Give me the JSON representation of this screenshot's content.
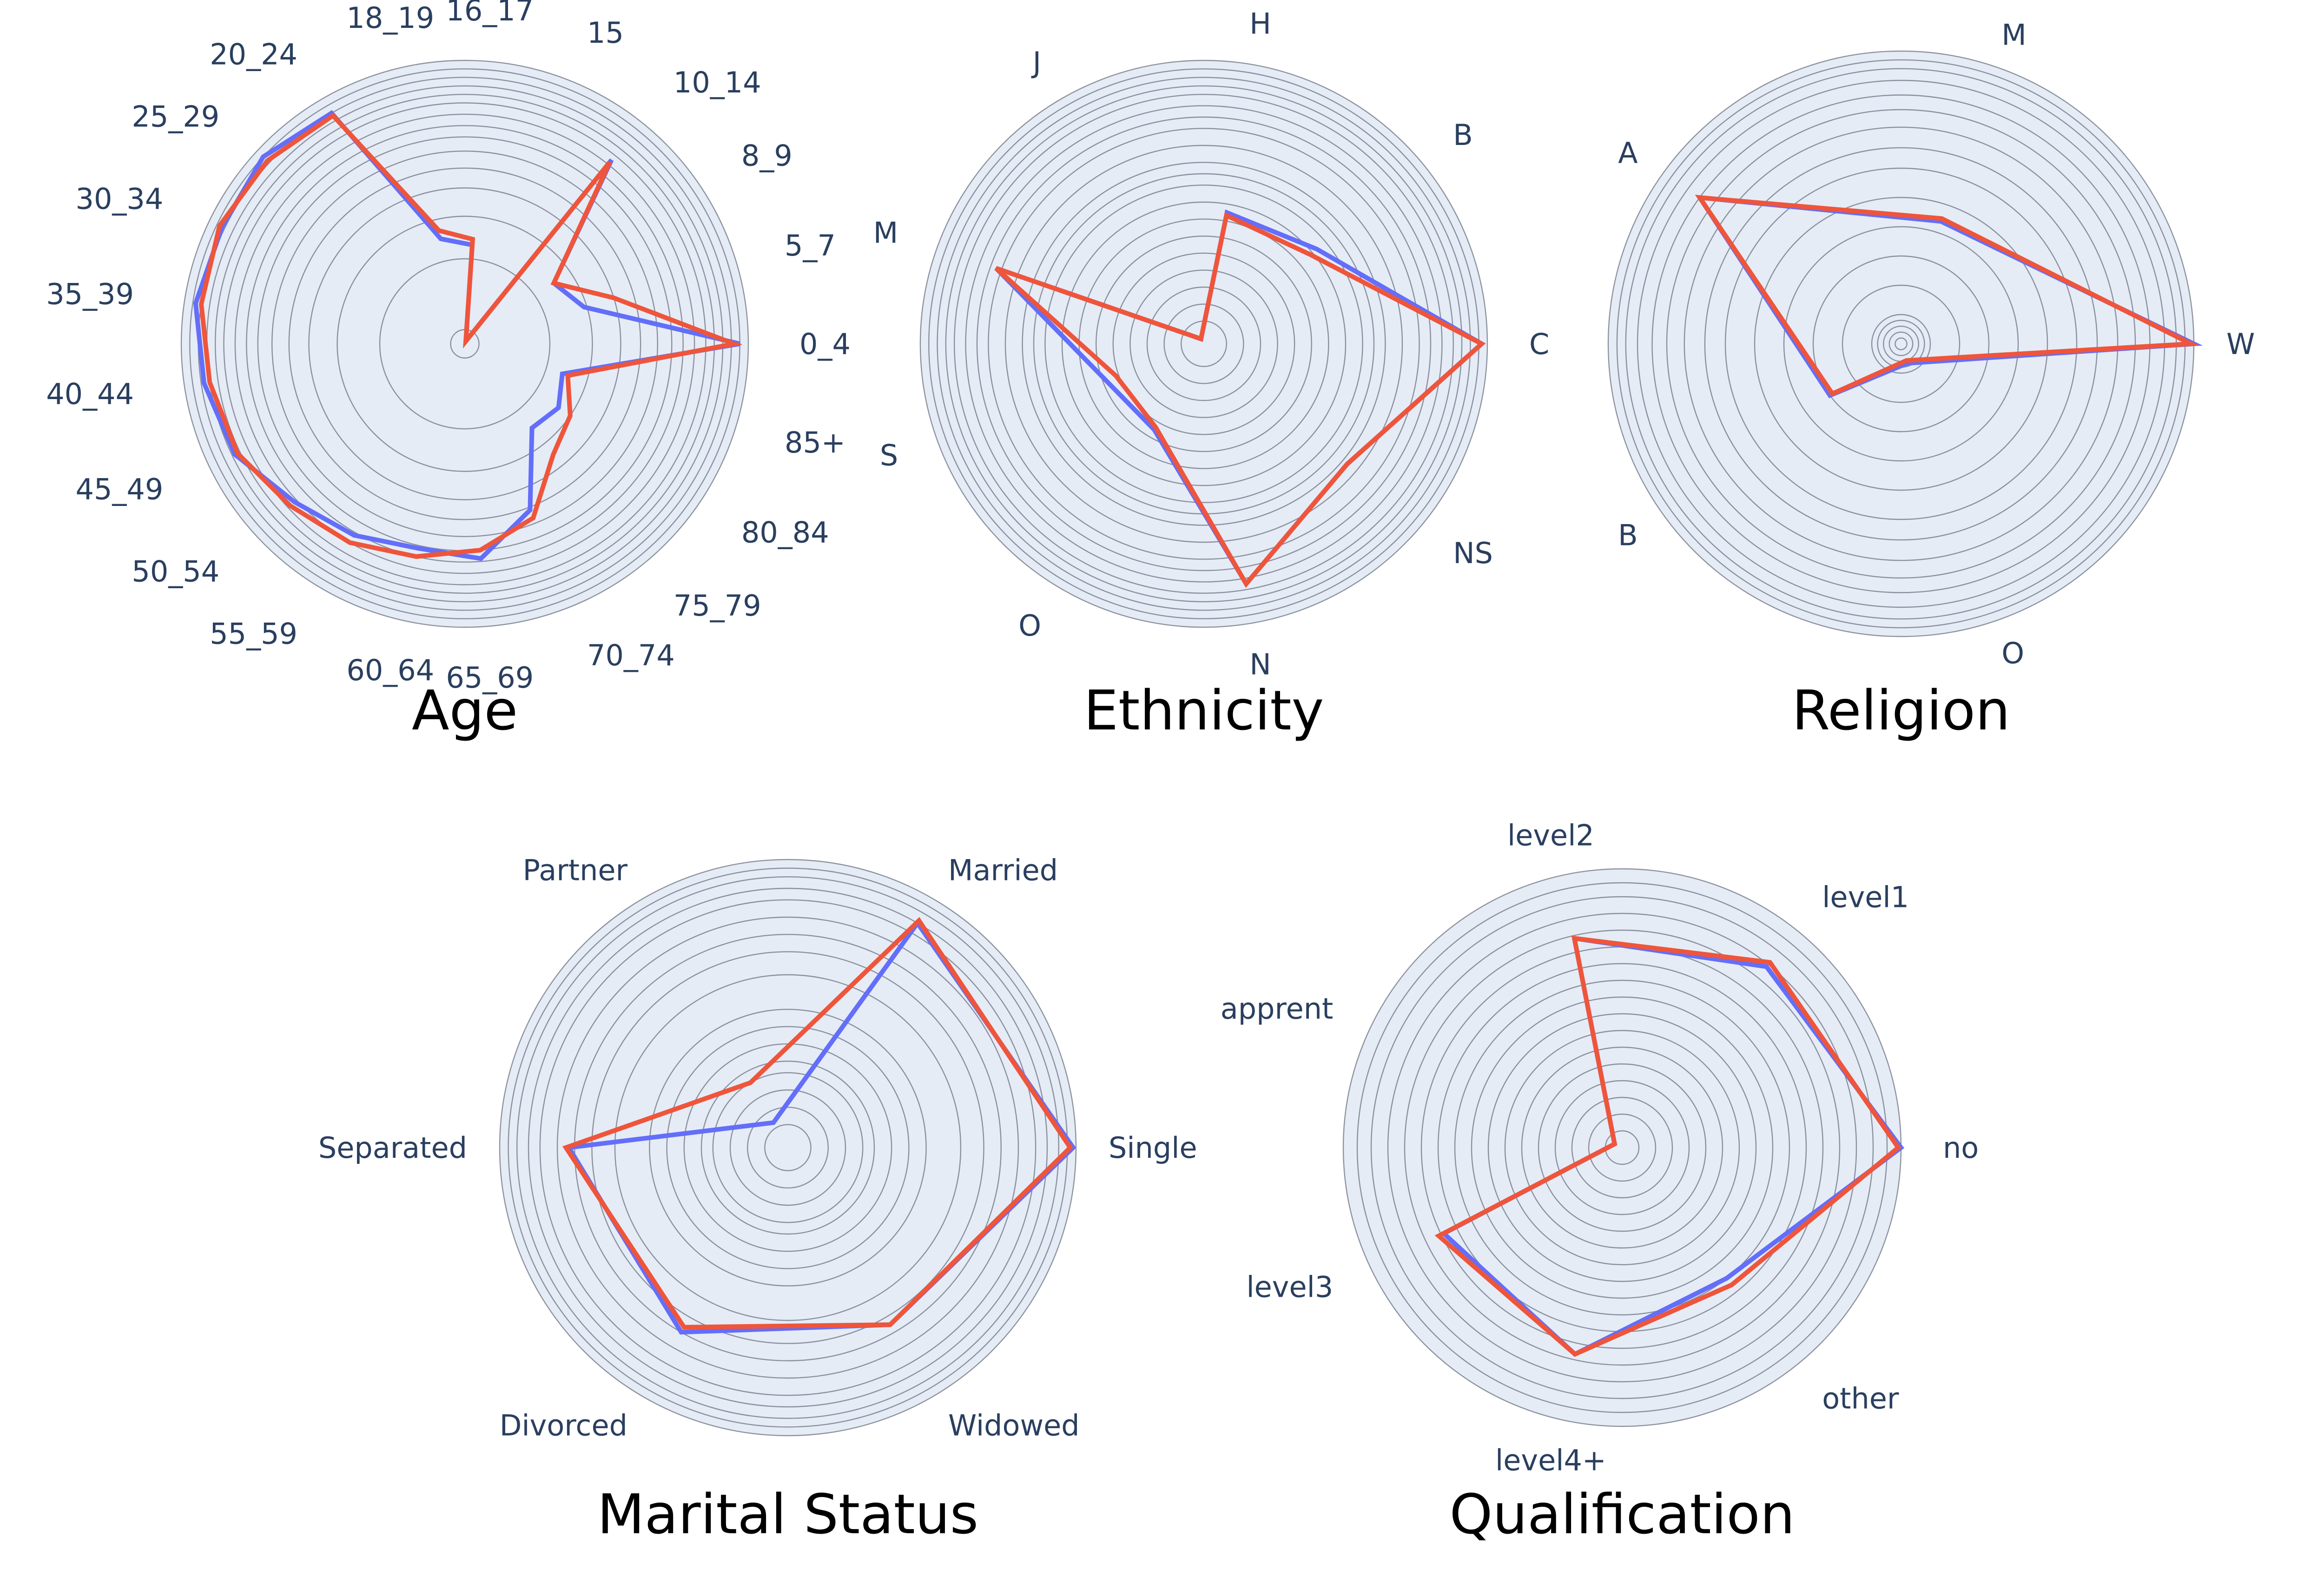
{
  "colors": {
    "background": "#e5ecf6",
    "grid": "#6b7280",
    "label": "#2a3f5f",
    "series_a": "#636efa",
    "series_b": "#ef553b"
  },
  "chart_data": [
    {
      "type": "radar",
      "title": "Age",
      "radial_scale": "log",
      "categories": [
        "0_4",
        "5_7",
        "8_9",
        "10_14",
        "15",
        "16_17",
        "18_19",
        "20_24",
        "25_29",
        "30_34",
        "35_39",
        "40_44",
        "45_49",
        "50_54",
        "55_59",
        "60_64",
        "65_69",
        "70_74",
        "75_79",
        "80_84",
        "85+"
      ],
      "series": [
        {
          "values": [
            0.97,
            0.44,
            0.38,
            0.83,
            0.01,
            0.35,
            0.38,
            0.94,
            0.97,
            0.95,
            0.96,
            0.93,
            0.9,
            0.82,
            0.78,
            0.74,
            0.76,
            0.63,
            0.38,
            0.4,
            0.36
          ]
        },
        {
          "values": [
            0.95,
            0.55,
            0.38,
            0.82,
            0.01,
            0.37,
            0.41,
            0.93,
            0.95,
            0.96,
            0.94,
            0.91,
            0.89,
            0.84,
            0.81,
            0.77,
            0.73,
            0.66,
            0.5,
            0.45,
            0.38
          ]
        }
      ]
    },
    {
      "type": "radar",
      "title": "Ethnicity",
      "radial_scale": "log",
      "categories": [
        "C",
        "B",
        "H",
        "J",
        "M",
        "S",
        "O",
        "N",
        "NS"
      ],
      "series": [
        {
          "values": [
            0.98,
            0.52,
            0.47,
            0.02,
            0.78,
            0.37,
            0.35,
            0.86,
            0.66
          ]
        },
        {
          "values": [
            0.98,
            0.49,
            0.46,
            0.02,
            0.78,
            0.33,
            0.34,
            0.86,
            0.66
          ]
        }
      ]
    },
    {
      "type": "radar",
      "title": "Religion",
      "radial_scale": "log",
      "categories": [
        "W",
        "M",
        "A",
        "B",
        "O"
      ],
      "series": [
        {
          "values": [
            1.0,
            0.44,
            0.85,
            0.3,
            0.07
          ]
        },
        {
          "values": [
            0.99,
            0.45,
            0.85,
            0.29,
            0.06
          ]
        }
      ]
    },
    {
      "type": "radar",
      "title": "Marital Status",
      "radial_scale": "log",
      "categories": [
        "Single",
        "Married",
        "Partner",
        "Separated",
        "Divorced",
        "Widowed"
      ],
      "series": [
        {
          "values": [
            0.99,
            0.9,
            0.1,
            0.76,
            0.74,
            0.71
          ]
        },
        {
          "values": [
            0.98,
            0.91,
            0.26,
            0.77,
            0.72,
            0.71
          ]
        }
      ]
    },
    {
      "type": "radar",
      "title": "Qualification",
      "radial_scale": "log",
      "categories": [
        "no",
        "level1",
        "level2",
        "apprent",
        "level3",
        "level4+",
        "other"
      ],
      "series": [
        {
          "values": [
            1.0,
            0.83,
            0.77,
            0.03,
            0.71,
            0.76,
            0.6
          ]
        },
        {
          "values": [
            0.99,
            0.85,
            0.77,
            0.03,
            0.73,
            0.76,
            0.63
          ]
        }
      ]
    }
  ]
}
